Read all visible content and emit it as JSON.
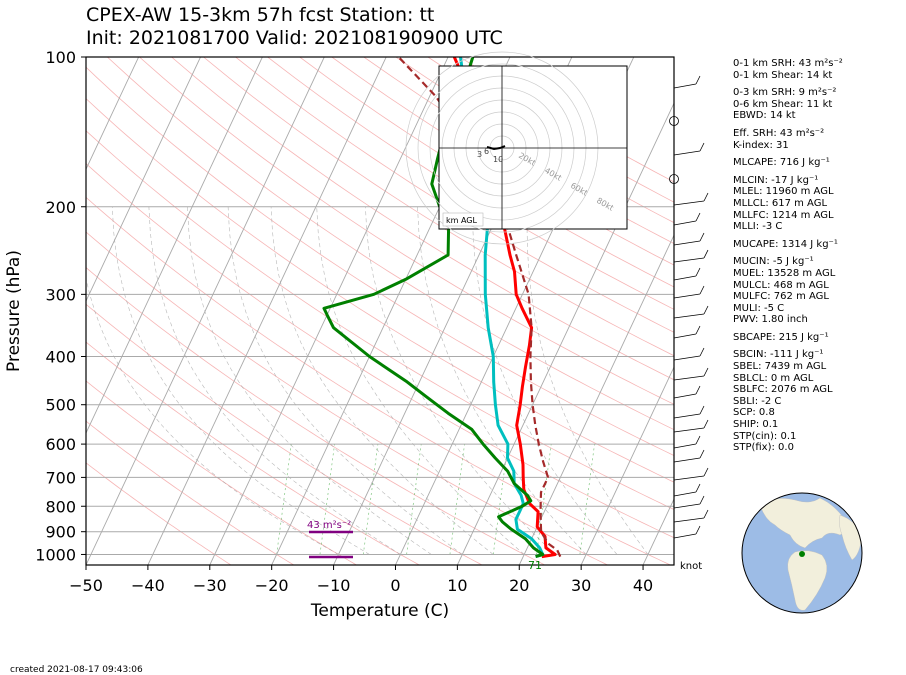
{
  "title_line1": "CPEX-AW 15-3km  57h fcst  Station: tt",
  "title_line2": "Init: 2021081700  Valid: 202108190900 UTC",
  "created": "created 2021-08-17 09:43:06",
  "chart_data": {
    "type": "line",
    "xlabel": "Temperature (C)",
    "ylabel": "Pressure (hPa)",
    "xlim": [
      -50,
      45
    ],
    "ylim": [
      1050,
      100
    ],
    "yscale": "log",
    "x_ticks": [
      -50,
      -40,
      -30,
      -20,
      -10,
      0,
      10,
      20,
      30,
      40
    ],
    "x_tick_labels": [
      "−50",
      "−40",
      "−30",
      "−20",
      "−10",
      "0",
      "10",
      "20",
      "30",
      "40"
    ],
    "y_ticks": [
      1000,
      900,
      800,
      700,
      600,
      500,
      400,
      300,
      200,
      100
    ],
    "grid": true,
    "series": [
      {
        "color": "#ff0000",
        "points": [
          [
            1010,
            23
          ],
          [
            1000,
            25
          ],
          [
            970,
            23
          ],
          [
            920,
            22
          ],
          [
            880,
            20
          ],
          [
            820,
            19
          ],
          [
            790,
            17
          ],
          [
            740,
            15
          ],
          [
            700,
            14
          ],
          [
            660,
            13
          ],
          [
            600,
            11
          ],
          [
            550,
            9
          ],
          [
            500,
            8
          ],
          [
            460,
            7
          ],
          [
            420,
            6
          ],
          [
            380,
            5
          ],
          [
            350,
            4
          ],
          [
            320,
            1
          ],
          [
            300,
            -1
          ],
          [
            270,
            -3
          ],
          [
            250,
            -5
          ],
          [
            220,
            -8
          ],
          [
            200,
            -10
          ],
          [
            180,
            -13
          ],
          [
            160,
            -17
          ],
          [
            130,
            -22
          ],
          [
            110,
            -26
          ],
          [
            100,
            -29
          ]
        ]
      },
      {
        "color": "#00bfbf",
        "points": [
          [
            1010,
            22
          ],
          [
            1000,
            23
          ],
          [
            970,
            22
          ],
          [
            930,
            20
          ],
          [
            890,
            17
          ],
          [
            850,
            16
          ],
          [
            820,
            16
          ],
          [
            790,
            16
          ],
          [
            760,
            15
          ],
          [
            720,
            13
          ],
          [
            680,
            12
          ],
          [
            640,
            10
          ],
          [
            600,
            9
          ],
          [
            550,
            6
          ],
          [
            500,
            4
          ],
          [
            450,
            2
          ],
          [
            400,
            0
          ],
          [
            350,
            -3
          ],
          [
            300,
            -6
          ],
          [
            250,
            -9
          ],
          [
            200,
            -12
          ],
          [
            170,
            -15
          ],
          [
            150,
            -19
          ],
          [
            130,
            -22
          ],
          [
            120,
            -24
          ],
          [
            110,
            -26
          ],
          [
            100,
            -28
          ]
        ]
      },
      {
        "color": "#008000",
        "points": [
          [
            1010,
            22
          ],
          [
            1000,
            23
          ],
          [
            970,
            21
          ],
          [
            930,
            19
          ],
          [
            890,
            16
          ],
          [
            860,
            14
          ],
          [
            840,
            13
          ],
          [
            800,
            16
          ],
          [
            780,
            17
          ],
          [
            760,
            16
          ],
          [
            720,
            13
          ],
          [
            680,
            11
          ],
          [
            640,
            8
          ],
          [
            600,
            5
          ],
          [
            560,
            2
          ],
          [
            520,
            -3
          ],
          [
            480,
            -8
          ],
          [
            450,
            -12
          ],
          [
            400,
            -20
          ],
          [
            350,
            -28
          ],
          [
            330,
            -30
          ],
          [
            320,
            -31
          ],
          [
            300,
            -24
          ],
          [
            280,
            -20
          ],
          [
            250,
            -15
          ],
          [
            220,
            -17
          ],
          [
            200,
            -20
          ],
          [
            180,
            -23
          ],
          [
            160,
            -24
          ],
          [
            140,
            -25
          ],
          [
            120,
            -25
          ],
          [
            100,
            -26
          ]
        ]
      },
      {
        "color": "#a52a2a",
        "dashed": true,
        "points": [
          [
            1010,
            26
          ],
          [
            980,
            25
          ],
          [
            950,
            23
          ],
          [
            900,
            21
          ],
          [
            850,
            20
          ],
          [
            800,
            19
          ],
          [
            750,
            18
          ],
          [
            700,
            18
          ],
          [
            650,
            16
          ],
          [
            600,
            14
          ],
          [
            550,
            12
          ],
          [
            500,
            10
          ],
          [
            450,
            8
          ],
          [
            400,
            6
          ],
          [
            350,
            4
          ],
          [
            300,
            1
          ],
          [
            250,
            -4
          ],
          [
            200,
            -10
          ],
          [
            150,
            -20
          ],
          [
            120,
            -29
          ],
          [
            100,
            -38
          ]
        ]
      }
    ],
    "annotations": [
      {
        "text": "43 m²s⁻²",
        "pressure": 890,
        "temperature": -13
      },
      {
        "text": "71",
        "pressure": 1015,
        "temperature": 21
      }
    ],
    "wind_unit_label": "knot"
  },
  "hodograph": {
    "ring_labels": [
      "20kt",
      "40kt",
      "60kt",
      "80kt"
    ],
    "height_labels": [
      "3",
      "6",
      "10"
    ],
    "footer_label": "km AGL"
  },
  "indices": [
    "0-1 km SRH: 43 m²s⁻²",
    "0-1 km Shear: 14 kt",
    "0-3 km SRH: 9 m²s⁻²",
    "0-6 km Shear: 11 kt",
    "EBWD: 14 kt",
    "Eff. SRH: 43 m²s⁻²",
    "K-index: 31",
    "MLCAPE: 716 J kg⁻¹",
    "MLCIN: -17 J kg⁻¹",
    "MLEL: 11960 m AGL",
    "MLLCL: 617 m AGL",
    "MLLFC: 1214 m AGL",
    "MLLI: -3 C",
    "MUCAPE: 1314 J kg⁻¹",
    "MUCIN: -5 J kg⁻¹",
    "MUEL: 13528 m AGL",
    "MULCL: 468 m AGL",
    "MULFC: 762 m AGL",
    "MULI: -5 C",
    "PWV: 1.80 inch",
    "SBCAPE: 215 J kg⁻¹",
    "SBCIN: -111 J kg⁻¹",
    "SBEL: 7439 m AGL",
    "SBLCL: 0 m AGL",
    "SBLFC: 2076 m AGL",
    "SBLI: -2 C",
    "SCP: 0.8",
    "SHIP: 0.1",
    "STP(cin): 0.1",
    "STP(fix): 0.0"
  ],
  "colors": {
    "globe_ocean": "#9dbce6",
    "globe_land": "#f2efdc",
    "station_marker": "#008000"
  }
}
